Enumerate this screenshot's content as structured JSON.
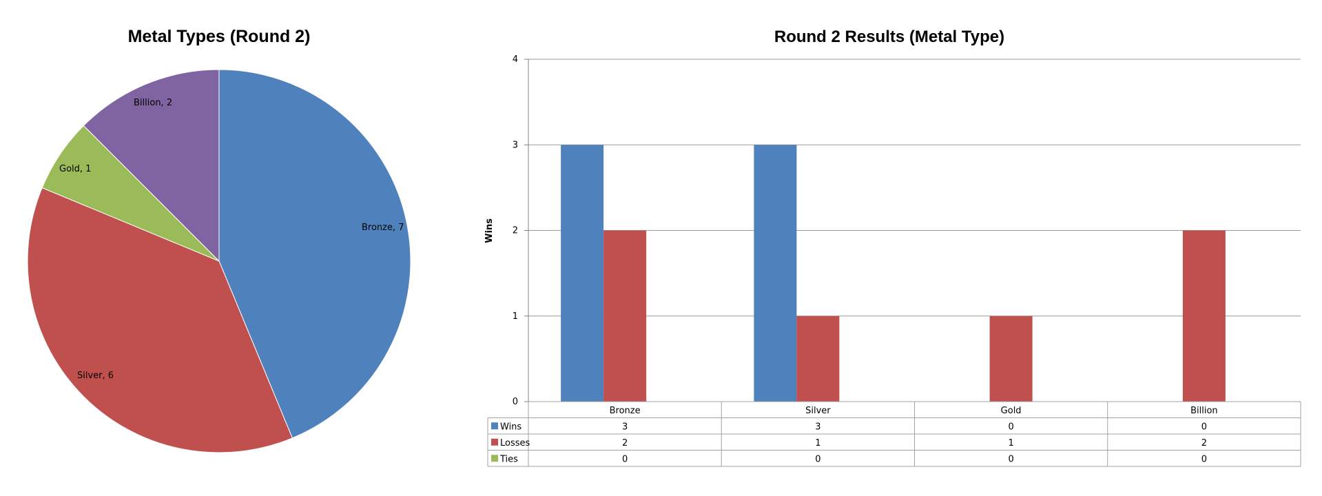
{
  "chart_data": [
    {
      "type": "pie",
      "title": "Metal Types (Round 2)",
      "categories": [
        "Bronze",
        "Silver",
        "Gold",
        "Billion"
      ],
      "values": [
        7,
        6,
        1,
        2
      ],
      "colors": [
        "#4F81BD",
        "#C0504D",
        "#9BBB59",
        "#8064A2"
      ],
      "data_labels": [
        "Bronze, 7",
        "Silver, 6",
        "Gold, 1",
        "Billion, 2"
      ],
      "legend": "none"
    },
    {
      "type": "bar",
      "title": "Round 2 Results (Metal Type)",
      "xlabel": "",
      "ylabel": "Wins",
      "categories": [
        "Bronze",
        "Silver",
        "Gold",
        "Billion"
      ],
      "series": [
        {
          "name": "Wins",
          "values": [
            3,
            3,
            0,
            0
          ],
          "color": "#4F81BD"
        },
        {
          "name": "Losses",
          "values": [
            2,
            1,
            1,
            2
          ],
          "color": "#C0504D"
        },
        {
          "name": "Ties",
          "values": [
            0,
            0,
            0,
            0
          ],
          "color": "#9BBB59"
        }
      ],
      "ylim": [
        0,
        4
      ],
      "yticks": [
        "0",
        "1",
        "2",
        "3",
        "4"
      ],
      "grid": true,
      "legend": "data table below chart"
    }
  ]
}
